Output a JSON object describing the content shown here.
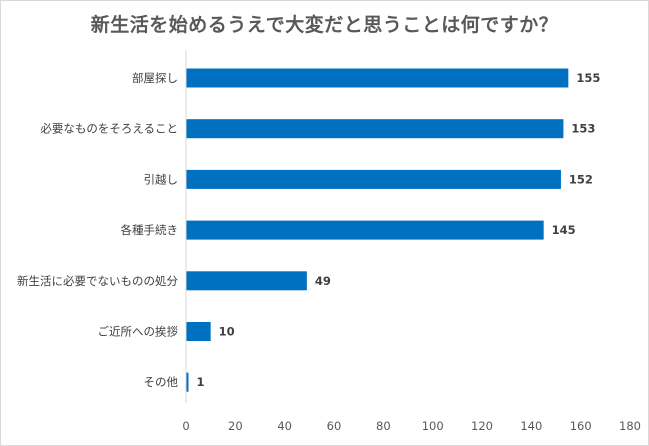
{
  "chart_data": {
    "type": "bar",
    "orientation": "horizontal",
    "title": "新生活を始めるうえで大変だと思うことは何ですか？",
    "categories": [
      "部屋探し",
      "必要なものをそろえること",
      "引越し",
      "各種手続き",
      "新生活に必要でないものの処分",
      "ご近所への挨拶",
      "その他"
    ],
    "values": [
      155,
      153,
      152,
      145,
      49,
      10,
      1
    ],
    "xlim": [
      0,
      180
    ],
    "xticks": [
      0,
      20,
      40,
      60,
      80,
      100,
      120,
      140,
      160,
      180
    ],
    "grid": false,
    "legend": "none",
    "bar_color": "#0070c0",
    "xlabel": "",
    "ylabel": ""
  }
}
